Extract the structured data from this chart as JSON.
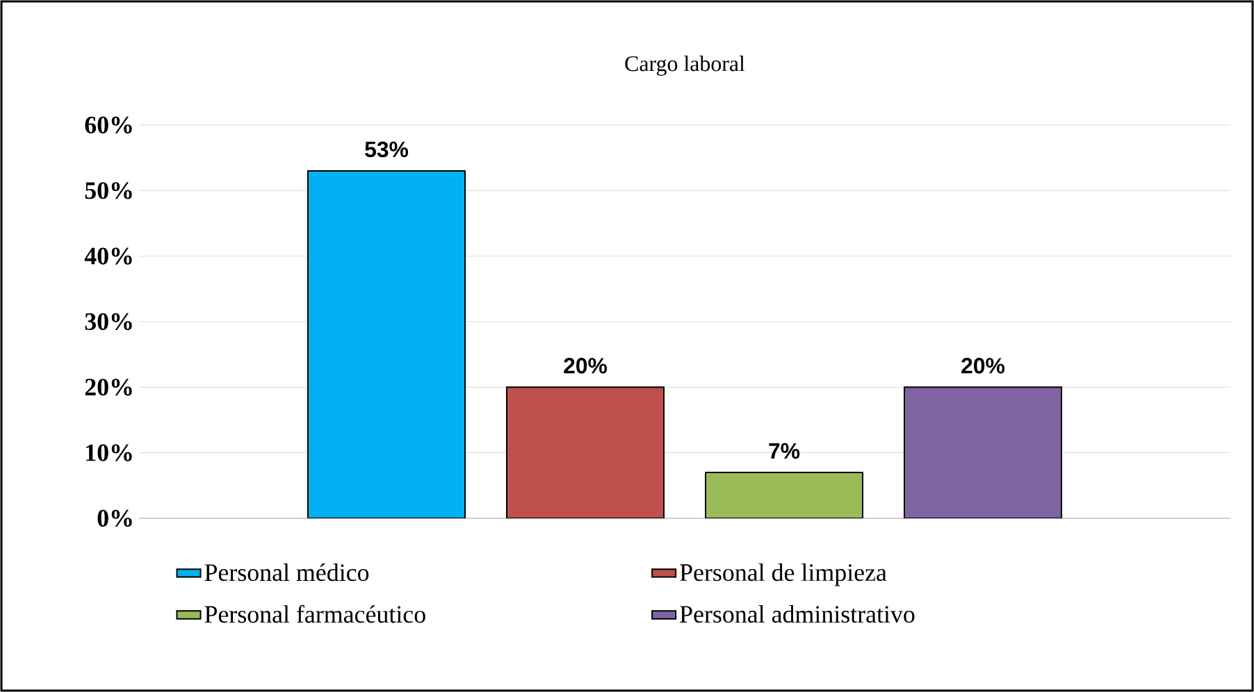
{
  "chart_data": {
    "type": "bar",
    "title": "Cargo laboral",
    "categories": [
      null
    ],
    "series": [
      {
        "name": "Personal médico",
        "color": "#00b0f0",
        "values": [
          53
        ],
        "value_labels": [
          "53%"
        ]
      },
      {
        "name": "Personal de limpieza",
        "color": "#c0504d",
        "values": [
          20
        ],
        "value_labels": [
          "20%"
        ]
      },
      {
        "name": "Personal farmacéutico",
        "color": "#9bbb59",
        "values": [
          7
        ],
        "value_labels": [
          "7%"
        ]
      },
      {
        "name": "Personal administrativo",
        "color": "#8064a2",
        "values": [
          20
        ],
        "value_labels": [
          "20%"
        ]
      }
    ],
    "ylim": [
      0,
      60
    ],
    "yticks": [
      {
        "value": 0,
        "label": "0%"
      },
      {
        "value": 10,
        "label": "10%"
      },
      {
        "value": 20,
        "label": "20%"
      },
      {
        "value": 30,
        "label": "30%"
      },
      {
        "value": 40,
        "label": "40%"
      },
      {
        "value": 50,
        "label": "50%"
      },
      {
        "value": 60,
        "label": "60%"
      }
    ],
    "grid": "y",
    "legend": "bottom"
  }
}
